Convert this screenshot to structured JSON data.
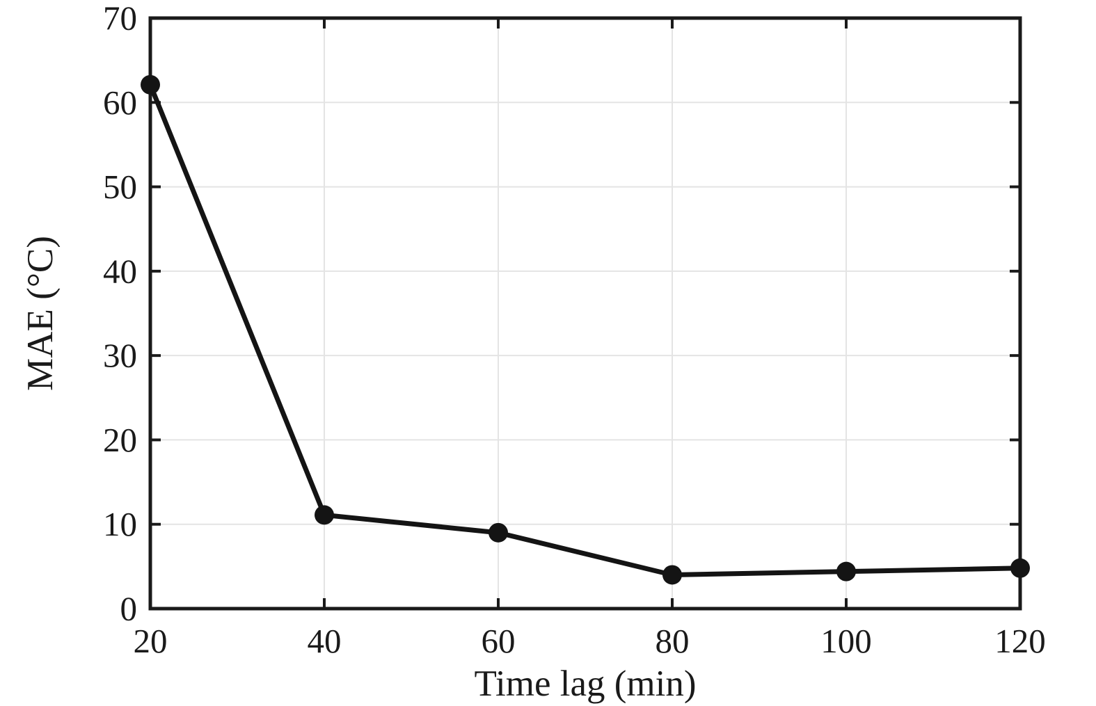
{
  "figure": {
    "background_color": "#ffffff",
    "axis_color": "#1a1a1a",
    "grid_color": "#e4e4e4",
    "line_color": "#141414",
    "marker_color": "#141414"
  },
  "chart_data": {
    "type": "line",
    "title": "",
    "xlabel": "Time lag (min)",
    "ylabel": "MAE (°C)",
    "x": [
      20,
      40,
      60,
      80,
      100,
      120
    ],
    "y": [
      62.1,
      11.1,
      9.0,
      4.0,
      4.4,
      4.8
    ],
    "series_name": "MAE",
    "xlim": [
      20,
      120
    ],
    "ylim": [
      0,
      70
    ],
    "xticks": [
      20,
      40,
      60,
      80,
      100,
      120
    ],
    "xtick_labels": [
      "20",
      "40",
      "60",
      "80",
      "100",
      "120"
    ],
    "yticks": [
      0,
      10,
      20,
      30,
      40,
      50,
      60,
      70
    ],
    "ytick_labels": [
      "0",
      "10",
      "20",
      "30",
      "40",
      "50",
      "60",
      "70"
    ],
    "grid": true,
    "legend": "none",
    "marker": "filled-circle"
  }
}
